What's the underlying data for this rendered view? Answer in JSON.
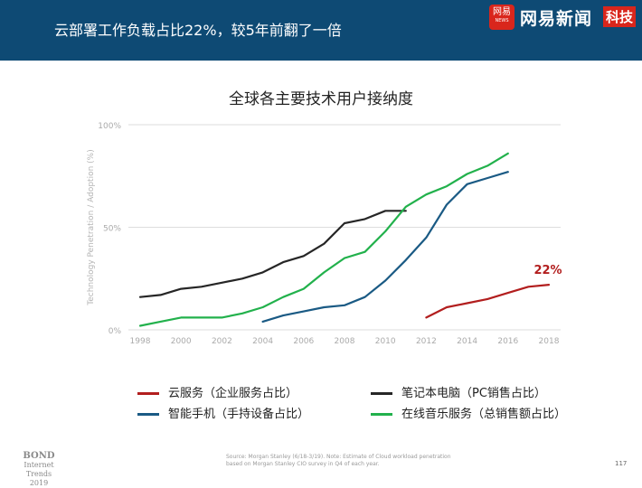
{
  "header": {
    "title": "云部署工作负载占比22%，较5年前翻了一倍",
    "logo_badge": "网易",
    "logo_badge_small": "NEWS",
    "logo_brand": "网易新闻",
    "logo_tag": "科技"
  },
  "colors": {
    "header_bg": "#0e4a74",
    "cloud": "#b21e1e",
    "notebook": "#262626",
    "smartphone": "#1a5a84",
    "music": "#22b14c",
    "accent_red": "#d9261c"
  },
  "chart_data": {
    "type": "line",
    "title": "全球各主要技术用户接纳度",
    "xlabel": "",
    "ylabel": "Technology Penetration / Adoption (%)",
    "xlim": [
      1998,
      2018
    ],
    "ylim": [
      0,
      100
    ],
    "x_ticks": [
      "1998",
      "2000",
      "2002",
      "2004",
      "2006",
      "2008",
      "2010",
      "2012",
      "2014",
      "2016",
      "2018"
    ],
    "y_ticks": [
      "0%",
      "50%",
      "100%"
    ],
    "annotation": {
      "text": "22%",
      "x": 2018,
      "y": 22
    },
    "series": [
      {
        "name": "云服务（企业服务占比）",
        "color": "#b21e1e",
        "x": [
          2012,
          2013,
          2014,
          2015,
          2016,
          2017,
          2018
        ],
        "y": [
          6,
          11,
          13,
          15,
          18,
          21,
          22
        ]
      },
      {
        "name": "智能手机（手持设备占比）",
        "color": "#1a5a84",
        "x": [
          2004,
          2005,
          2006,
          2007,
          2008,
          2009,
          2010,
          2011,
          2012,
          2013,
          2014,
          2015,
          2016
        ],
        "y": [
          4,
          7,
          9,
          11,
          12,
          16,
          24,
          34,
          45,
          61,
          71,
          74,
          77
        ]
      },
      {
        "name": "笔记本电脑（PC销售占比）",
        "color": "#262626",
        "x": [
          1998,
          1999,
          2000,
          2001,
          2002,
          2003,
          2004,
          2005,
          2006,
          2007,
          2008,
          2009,
          2010,
          2011
        ],
        "y": [
          16,
          17,
          20,
          21,
          23,
          25,
          28,
          33,
          36,
          42,
          52,
          54,
          58,
          58
        ]
      },
      {
        "name": "在线音乐服务（总销售额占比）",
        "color": "#22b14c",
        "x": [
          1998,
          1999,
          2000,
          2001,
          2002,
          2003,
          2004,
          2005,
          2006,
          2007,
          2008,
          2009,
          2010,
          2011,
          2012,
          2013,
          2014,
          2015,
          2016
        ],
        "y": [
          2,
          4,
          6,
          6,
          6,
          8,
          11,
          16,
          20,
          28,
          35,
          38,
          48,
          60,
          66,
          70,
          76,
          80,
          86
        ]
      }
    ]
  },
  "legend": {
    "items": [
      {
        "label": "云服务（企业服务占比）",
        "color": "#b21e1e"
      },
      {
        "label": "笔记本电脑（PC销售占比）",
        "color": "#262626"
      },
      {
        "label": "智能手机（手持设备占比）",
        "color": "#1a5a84"
      },
      {
        "label": "在线音乐服务（总销售额占比）",
        "color": "#22b14c"
      }
    ]
  },
  "footer": {
    "logo_line1": "BOND",
    "logo_line2": "Internet Trends",
    "logo_line3": "2019",
    "source": "Source: Morgan Stanley (6/18-3/19).  Note: Estimate of Cloud workload penetration based on Morgan Stanley CIO survey in Q4 of each year.",
    "page_number": "117"
  }
}
